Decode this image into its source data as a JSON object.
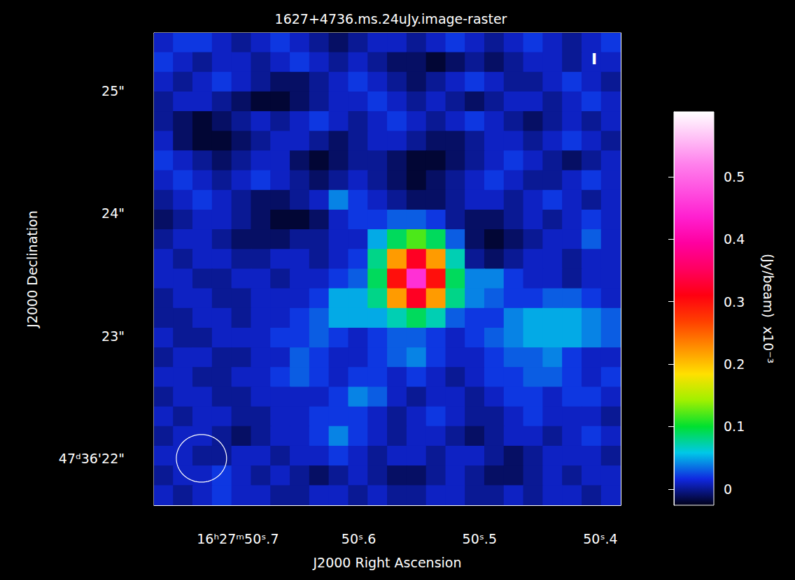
{
  "chart_data": {
    "type": "heatmap",
    "title": "1627+4736.ms.24uJy.image-raster",
    "x_label": "J2000 Right Ascension",
    "y_label": "J2000 Declination",
    "annotations": [
      "I"
    ],
    "xlim": [
      50.7694,
      50.3832
    ],
    "xticks": [
      {
        "value": 50.7,
        "label": "16ʰ27ᵐ50ˢ.7"
      },
      {
        "value": 50.6,
        "label": "50ˢ.6"
      },
      {
        "value": 50.5,
        "label": "50ˢ.5"
      },
      {
        "value": 50.4,
        "label": "50ˢ.4"
      }
    ],
    "ylim": [
      21.617,
      25.474
    ],
    "yticks": [
      {
        "value": 22,
        "label": "47ᵈ36'22\""
      },
      {
        "value": 23,
        "label": "23\""
      },
      {
        "value": 24,
        "label": "24\""
      },
      {
        "value": 25,
        "label": "25\""
      }
    ],
    "beam": {
      "x": 50.7301,
      "y": 22.0,
      "width": 0.0416,
      "height": 0.389
    },
    "colorbar": {
      "label": "(Jy/beam)  x10⁻³",
      "range": [
        -0.026,
        0.604
      ],
      "ticks": [
        0,
        0.1,
        0.2,
        0.3,
        0.4,
        0.5
      ]
    },
    "cells": {
      "x": [
        50.7614,
        50.7453,
        50.7292,
        50.7131,
        50.697,
        50.6809,
        50.6648,
        50.6487,
        50.6326,
        50.6165,
        50.6004,
        50.5843,
        50.5682,
        50.5521,
        50.536,
        50.5199,
        50.5039,
        50.4878,
        50.4717,
        50.4556,
        50.4395,
        50.4234,
        50.4073,
        50.3912
      ],
      "y": [
        25.394,
        25.233,
        25.072,
        24.912,
        24.751,
        24.59,
        24.43,
        24.269,
        24.108,
        23.947,
        23.787,
        23.626,
        23.465,
        23.305,
        23.144,
        22.983,
        22.822,
        22.662,
        22.501,
        22.34,
        22.18,
        22.019,
        21.858,
        21.697
      ],
      "values": [
        [
          0.01,
          0.02,
          0.02,
          0.01,
          0.0,
          0.01,
          0.02,
          0.01,
          0.0,
          -0.01,
          0.0,
          0.01,
          0.01,
          0.0,
          0.01,
          0.02,
          0.01,
          0.0,
          0.01,
          0.02,
          0.01,
          0.0,
          0.01,
          0.02
        ],
        [
          0.02,
          0.01,
          0.0,
          0.01,
          0.01,
          0.0,
          0.01,
          0.02,
          0.01,
          0.0,
          0.01,
          0.0,
          -0.01,
          -0.01,
          -0.02,
          -0.01,
          0.0,
          -0.01,
          0.0,
          0.01,
          0.01,
          0.0,
          0.01,
          0.01
        ],
        [
          0.01,
          0.0,
          0.01,
          0.02,
          0.01,
          0.0,
          -0.01,
          -0.01,
          0.0,
          0.01,
          0.02,
          0.01,
          0.0,
          -0.01,
          0.0,
          0.01,
          0.02,
          0.01,
          0.0,
          0.0,
          0.01,
          0.02,
          0.01,
          0.0
        ],
        [
          0.0,
          0.01,
          0.01,
          0.0,
          -0.01,
          -0.02,
          -0.02,
          -0.01,
          0.0,
          0.01,
          0.01,
          0.02,
          0.01,
          0.0,
          0.01,
          0.0,
          -0.01,
          0.0,
          0.01,
          0.01,
          0.0,
          0.01,
          0.02,
          0.01
        ],
        [
          0.0,
          -0.01,
          -0.02,
          -0.01,
          0.0,
          0.01,
          0.0,
          0.01,
          0.02,
          0.01,
          0.0,
          0.01,
          0.02,
          0.01,
          0.0,
          0.01,
          0.02,
          0.01,
          0.0,
          -0.01,
          0.0,
          0.01,
          0.0,
          0.01
        ],
        [
          0.01,
          -0.01,
          -0.02,
          -0.02,
          -0.01,
          0.0,
          0.01,
          0.01,
          0.0,
          -0.01,
          0.0,
          0.01,
          0.01,
          0.0,
          -0.01,
          -0.01,
          0.0,
          0.01,
          0.01,
          0.0,
          0.01,
          0.02,
          0.01,
          0.0
        ],
        [
          0.02,
          0.01,
          0.0,
          -0.01,
          0.0,
          0.01,
          0.01,
          -0.01,
          -0.02,
          -0.01,
          0.0,
          0.0,
          -0.01,
          -0.02,
          -0.02,
          -0.01,
          0.0,
          0.01,
          0.02,
          0.01,
          0.0,
          -0.01,
          0.0,
          0.01
        ],
        [
          0.01,
          0.02,
          0.01,
          0.0,
          0.01,
          0.02,
          0.01,
          0.0,
          -0.01,
          0.0,
          0.01,
          0.0,
          -0.01,
          -0.02,
          -0.01,
          0.0,
          0.01,
          0.02,
          0.01,
          0.0,
          0.0,
          0.01,
          0.02,
          0.01
        ],
        [
          0.0,
          0.01,
          0.02,
          0.01,
          0.0,
          -0.01,
          -0.01,
          0.0,
          0.01,
          0.04,
          0.02,
          0.01,
          0.0,
          -0.01,
          -0.01,
          0.0,
          0.01,
          0.01,
          0.0,
          0.01,
          0.02,
          0.01,
          0.0,
          0.01
        ],
        [
          -0.01,
          0.0,
          0.01,
          0.01,
          0.0,
          -0.01,
          -0.02,
          -0.02,
          -0.01,
          0.01,
          0.02,
          0.02,
          0.03,
          0.03,
          0.02,
          0.0,
          -0.01,
          -0.01,
          0.0,
          0.01,
          0.0,
          0.01,
          0.02,
          0.01
        ],
        [
          0.0,
          0.01,
          0.01,
          0.0,
          -0.01,
          -0.01,
          -0.01,
          0.0,
          0.0,
          0.01,
          0.01,
          0.05,
          0.09,
          0.12,
          0.09,
          0.03,
          -0.01,
          -0.02,
          -0.01,
          0.0,
          0.01,
          0.01,
          0.03,
          0.01
        ],
        [
          0.01,
          0.0,
          0.01,
          0.01,
          0.0,
          0.0,
          0.01,
          0.01,
          0.0,
          0.01,
          0.02,
          0.08,
          0.22,
          0.32,
          0.22,
          0.07,
          0.0,
          -0.01,
          0.0,
          0.01,
          0.01,
          0.0,
          0.01,
          0.01
        ],
        [
          0.01,
          0.01,
          0.0,
          0.0,
          0.01,
          0.01,
          0.0,
          0.01,
          0.01,
          0.02,
          0.03,
          0.09,
          0.3,
          0.45,
          0.3,
          0.09,
          0.04,
          0.04,
          0.02,
          0.01,
          0.01,
          0.0,
          0.01,
          0.01
        ],
        [
          0.0,
          0.01,
          0.01,
          0.0,
          0.0,
          0.01,
          0.01,
          0.01,
          0.02,
          0.05,
          0.05,
          0.08,
          0.22,
          0.32,
          0.22,
          0.08,
          0.04,
          0.03,
          0.02,
          0.02,
          0.03,
          0.03,
          0.02,
          0.01
        ],
        [
          0.0,
          0.0,
          0.01,
          0.01,
          0.0,
          0.01,
          0.01,
          0.02,
          0.03,
          0.05,
          0.05,
          0.05,
          0.07,
          0.09,
          0.07,
          0.03,
          0.02,
          0.02,
          0.04,
          0.05,
          0.05,
          0.05,
          0.04,
          0.03
        ],
        [
          0.01,
          0.0,
          0.0,
          0.01,
          0.01,
          0.01,
          0.02,
          0.02,
          0.03,
          0.02,
          0.01,
          0.02,
          0.03,
          0.03,
          0.02,
          0.01,
          0.02,
          0.03,
          0.04,
          0.05,
          0.05,
          0.05,
          0.04,
          0.03
        ],
        [
          0.0,
          0.01,
          0.01,
          0.0,
          0.0,
          0.01,
          0.01,
          0.03,
          0.02,
          0.01,
          0.01,
          0.02,
          0.03,
          0.04,
          0.02,
          0.01,
          0.01,
          0.02,
          0.03,
          0.03,
          0.04,
          0.02,
          0.01,
          0.01
        ],
        [
          0.01,
          0.01,
          0.0,
          0.0,
          0.01,
          0.01,
          0.02,
          0.03,
          0.02,
          0.01,
          0.02,
          0.02,
          0.01,
          0.02,
          0.01,
          0.0,
          0.01,
          0.02,
          0.02,
          0.03,
          0.03,
          0.02,
          0.01,
          0.02
        ],
        [
          0.0,
          0.01,
          0.01,
          0.0,
          0.0,
          0.01,
          0.01,
          0.01,
          0.01,
          0.02,
          0.04,
          0.03,
          0.01,
          0.0,
          0.01,
          0.01,
          0.0,
          0.01,
          0.02,
          0.02,
          0.01,
          0.02,
          0.02,
          0.01
        ],
        [
          0.01,
          0.0,
          0.01,
          0.01,
          0.0,
          0.0,
          0.01,
          0.01,
          0.02,
          0.02,
          0.02,
          0.01,
          0.0,
          0.01,
          0.02,
          0.01,
          0.0,
          0.0,
          0.01,
          0.02,
          0.01,
          0.01,
          0.01,
          0.0
        ],
        [
          0.0,
          0.01,
          0.01,
          0.0,
          -0.01,
          0.0,
          0.01,
          0.01,
          0.02,
          0.04,
          0.02,
          0.01,
          0.0,
          0.01,
          0.01,
          0.0,
          -0.01,
          0.0,
          0.01,
          0.01,
          0.0,
          0.01,
          0.02,
          0.01
        ],
        [
          0.01,
          0.01,
          0.0,
          0.0,
          0.01,
          0.01,
          0.0,
          0.01,
          0.01,
          0.02,
          0.01,
          0.0,
          0.01,
          0.01,
          0.0,
          0.01,
          0.01,
          0.0,
          -0.01,
          0.0,
          0.01,
          0.01,
          0.01,
          0.0
        ],
        [
          0.0,
          0.01,
          0.01,
          0.02,
          0.01,
          0.0,
          0.01,
          0.0,
          -0.01,
          0.0,
          0.01,
          0.0,
          -0.01,
          -0.01,
          0.0,
          0.01,
          0.0,
          -0.01,
          -0.01,
          0.0,
          0.01,
          0.0,
          0.01,
          0.01
        ],
        [
          0.01,
          0.0,
          0.01,
          0.02,
          0.01,
          0.01,
          0.0,
          0.0,
          0.01,
          0.01,
          0.0,
          0.01,
          0.0,
          0.0,
          0.01,
          0.01,
          0.0,
          0.0,
          0.01,
          0.0,
          0.01,
          0.01,
          0.0,
          0.01
        ]
      ]
    }
  }
}
